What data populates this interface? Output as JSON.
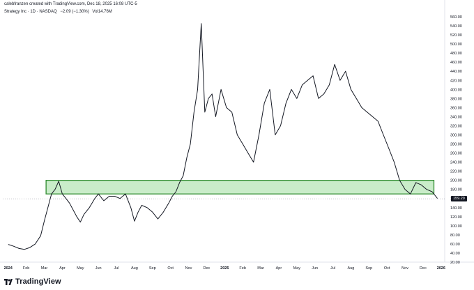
{
  "header": {
    "credit": "calebfranzen created with TradingView.com, Dec 18, 2025 16:08 UTC-5"
  },
  "legend": {
    "symbol": "Strategy Inc · 1D · NASDAQ",
    "change": "−2.09 (−1.30%)",
    "volume": "Vol14.76M"
  },
  "last_price_label": "159.29",
  "brand": {
    "name": "TradingView"
  },
  "colors": {
    "line": "#131722",
    "zone_fill": "#c9ecc9",
    "zone_border": "#2e8b2e",
    "axis_text": "#131722",
    "last_price_bg": "#131722"
  },
  "chart_data": {
    "type": "line",
    "title": "",
    "xlabel": "",
    "ylabel": "",
    "ylim": [
      20,
      560
    ],
    "y_ticks": [
      20,
      40,
      60,
      80,
      100,
      120,
      140,
      160,
      180,
      200,
      220,
      240,
      260,
      280,
      300,
      320,
      340,
      360,
      380,
      400,
      420,
      440,
      460,
      480,
      500,
      520,
      540,
      560
    ],
    "y_tick_labels": [
      "20.00",
      "40.00",
      "60.00",
      "80.00",
      "100.00",
      "120.00",
      "140.00",
      "160.00",
      "180.00",
      "200.00",
      "220.00",
      "240.00",
      "260.00",
      "280.00",
      "300.00",
      "320.00",
      "340.00",
      "360.00",
      "380.00",
      "400.00",
      "420.00",
      "440.00",
      "460.00",
      "480.00",
      "500.00",
      "520.00",
      "540.00",
      "560.00"
    ],
    "x_tick_labels": [
      "2024",
      "Feb",
      "Mar",
      "Apr",
      "May",
      "Jun",
      "Jul",
      "Aug",
      "Sep",
      "Oct",
      "Nov",
      "Dec",
      "2025",
      "Feb",
      "Mar",
      "Apr",
      "May",
      "Jun",
      "Jul",
      "Aug",
      "Sep",
      "Oct",
      "Nov",
      "Dec",
      "2026"
    ],
    "x_tick_months": [
      0,
      1,
      2,
      3,
      4,
      5,
      6,
      7,
      8,
      9,
      10,
      11,
      12,
      13,
      14,
      15,
      16,
      17,
      18,
      19,
      20,
      21,
      22,
      23,
      24
    ],
    "x_range_months": [
      -0.3,
      24.2
    ],
    "series": [
      {
        "x": [
          0,
          0.3,
          0.6,
          0.9,
          1.2,
          1.5,
          1.8,
          2.0,
          2.2,
          2.4,
          2.6,
          2.8,
          3.0,
          3.2,
          3.4,
          3.6,
          3.8,
          4.0,
          4.2,
          4.5,
          4.8,
          5.0,
          5.3,
          5.6,
          5.9,
          6.2,
          6.5,
          6.8,
          7.0,
          7.2,
          7.4,
          7.7,
          8.0,
          8.3,
          8.6,
          8.9,
          9.1,
          9.3,
          9.5,
          9.7,
          9.9,
          10.1,
          10.3,
          10.5,
          10.7,
          10.9,
          11.1,
          11.3,
          11.5,
          11.8,
          12.1,
          12.4,
          12.7,
          13.0,
          13.3,
          13.6,
          13.9,
          14.2,
          14.5,
          14.8,
          15.1,
          15.4,
          15.7,
          16.0,
          16.3,
          16.6,
          16.9,
          17.2,
          17.5,
          17.8,
          18.1,
          18.4,
          18.7,
          19.0,
          19.3,
          19.6,
          19.9,
          20.2,
          20.5,
          20.8,
          21.1,
          21.4,
          21.7,
          22.0,
          22.3,
          22.6,
          22.9,
          23.2,
          23.5,
          23.8
        ],
        "y": [
          59,
          55,
          50,
          48,
          52,
          60,
          78,
          110,
          140,
          170,
          180,
          198,
          170,
          160,
          150,
          135,
          120,
          108,
          125,
          140,
          160,
          170,
          155,
          165,
          165,
          160,
          170,
          140,
          110,
          130,
          145,
          140,
          130,
          115,
          130,
          150,
          165,
          175,
          195,
          210,
          250,
          280,
          350,
          400,
          545,
          350,
          380,
          390,
          340,
          400,
          360,
          350,
          300,
          280,
          260,
          240,
          300,
          370,
          400,
          300,
          320,
          370,
          400,
          380,
          410,
          420,
          430,
          380,
          390,
          410,
          455,
          420,
          440,
          400,
          380,
          360,
          350,
          340,
          330,
          300,
          270,
          240,
          200,
          180,
          170,
          195,
          190,
          180,
          175,
          160
        ]
      }
    ],
    "zone": {
      "y_low": 170,
      "y_high": 200,
      "x_start": 2.1,
      "x_end": 23.6
    },
    "last_price": 159.29,
    "annotations": []
  }
}
